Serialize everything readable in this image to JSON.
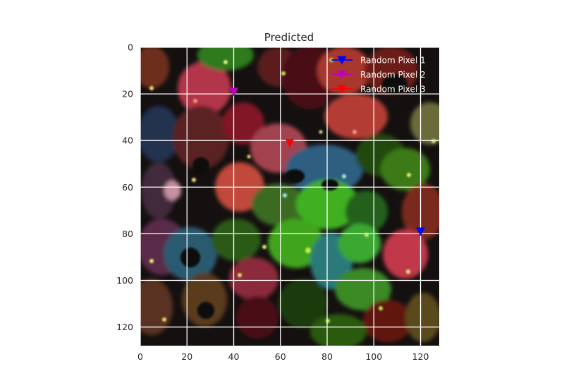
{
  "chart_data": {
    "type": "image",
    "title": "Predicted",
    "xlabel": "",
    "ylabel": "",
    "xlim": [
      0,
      128
    ],
    "ylim": [
      128,
      0
    ],
    "x_ticks": [
      0,
      20,
      40,
      60,
      80,
      100,
      120
    ],
    "y_ticks": [
      0,
      20,
      40,
      60,
      80,
      100,
      120
    ],
    "x_tick_labels": [
      "0",
      "20",
      "40",
      "60",
      "80",
      "100",
      "120"
    ],
    "y_tick_labels": [
      "0",
      "20",
      "40",
      "60",
      "80",
      "100",
      "120"
    ],
    "grid": true,
    "grid_color": "#ffffff",
    "legend_position": "upper-right",
    "series": [
      {
        "name": "Random Pixel 1",
        "color": "#0000ff",
        "marker": "triangle-down",
        "points": [
          {
            "x": 120,
            "y": 79
          }
        ]
      },
      {
        "name": "Random Pixel 2",
        "color": "#bf00bf",
        "marker": "triangle-down",
        "points": [
          {
            "x": 40,
            "y": 19
          }
        ]
      },
      {
        "name": "Random Pixel 3",
        "color": "#ff0000",
        "marker": "triangle-down",
        "points": [
          {
            "x": 64,
            "y": 41
          }
        ]
      }
    ]
  }
}
